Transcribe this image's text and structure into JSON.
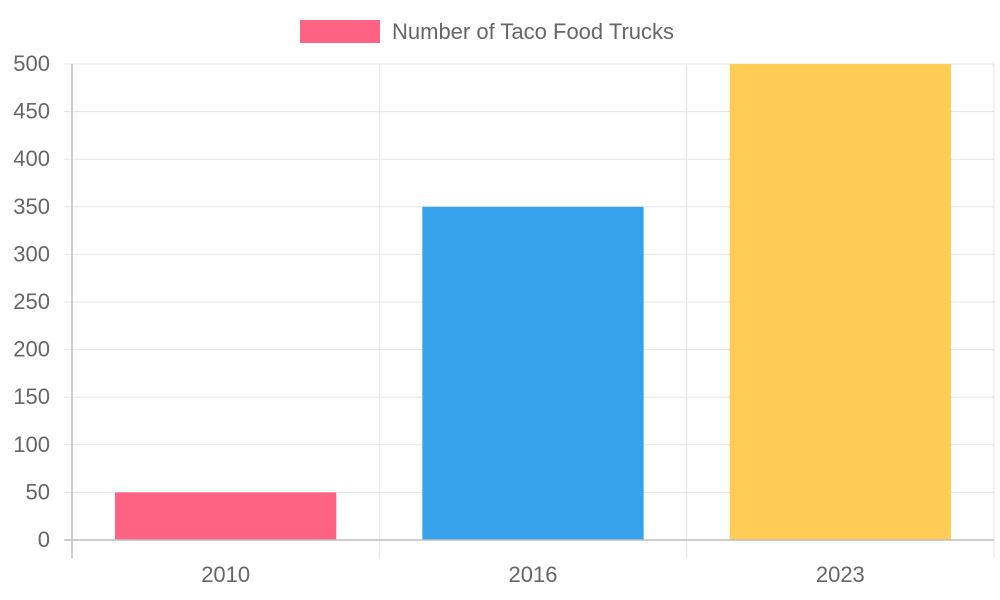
{
  "chart_data": {
    "type": "bar",
    "categories": [
      "2010",
      "2016",
      "2023"
    ],
    "series": [
      {
        "name": "Number of Taco Food Trucks",
        "values": [
          50,
          350,
          500
        ],
        "colors": [
          "#ff6384",
          "#36a2eb",
          "#ffcd56"
        ]
      }
    ],
    "ylim": [
      0,
      500
    ],
    "yticks": [
      0,
      50,
      100,
      150,
      200,
      250,
      300,
      350,
      400,
      450,
      500
    ],
    "grid": true,
    "legend_placement": "top-center",
    "colors": {
      "text": "#666666",
      "grid": "#e5e5e5",
      "axis": "#bdbdbd",
      "legend_swatch": "#ff6384"
    }
  }
}
